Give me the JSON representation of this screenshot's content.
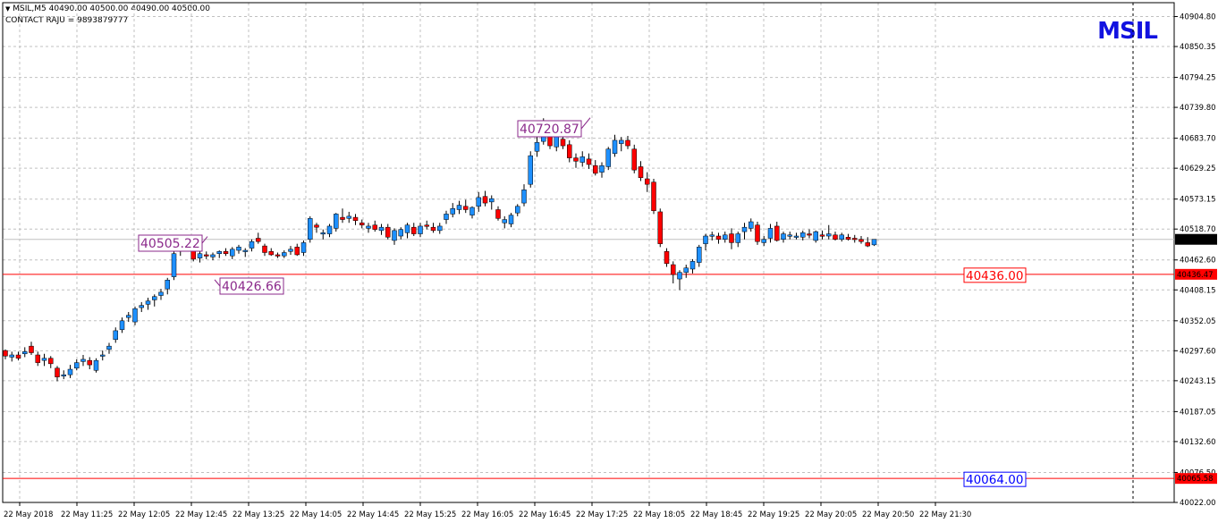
{
  "header": {
    "symbol_line": "MSIL,M5  40490.00 40500.00 40490.00 40500.00",
    "contact_line": "CONTACT RAJU = 9893879777",
    "big_title": "MSIL"
  },
  "colors": {
    "bull": "#1e90ff",
    "bear": "#ff0000",
    "grid": "#c0c0c0",
    "hline": "#ff0000",
    "price_tag": "#000000",
    "label_purple": "#8b2a8b",
    "label_blue": "#0000ff",
    "title": "#1212e0"
  },
  "chart_data": {
    "type": "candlestick",
    "symbol": "MSIL",
    "timeframe": "M5",
    "ylim": [
      40022,
      40930
    ],
    "y_ticks": [
      "40904.80",
      "40850.35",
      "40794.25",
      "40739.80",
      "40683.70",
      "40629.25",
      "40573.15",
      "40518.70",
      "40462.60",
      "40408.15",
      "40352.05",
      "40297.60",
      "40243.15",
      "40187.05",
      "40132.60",
      "40076.50",
      "40022.00"
    ],
    "x_ticks": [
      "22 May 2018",
      "22 May 11:25",
      "22 May 12:05",
      "22 May 12:45",
      "22 May 13:25",
      "22 May 14:05",
      "22 May 14:45",
      "22 May 15:25",
      "22 May 16:05",
      "22 May 16:45",
      "22 May 17:25",
      "22 May 18:05",
      "22 May 18:45",
      "22 May 19:25",
      "22 May 20:05",
      "22 May 20:50",
      "22 May 21:30"
    ],
    "current_price": "40500.00",
    "horizontal_lines": [
      {
        "price": 40436.47,
        "tag": "40436.47",
        "label": "40436.00",
        "label_color": "#ff0000"
      },
      {
        "price": 40065.58,
        "tag": "40065.58",
        "label": "40064.00",
        "label_color": "#0000ff"
      }
    ],
    "annotations": [
      {
        "text": "40720.87",
        "price": 40720.87,
        "bar": 82
      },
      {
        "text": "40505.22",
        "price": 40505.22,
        "bar": 28
      },
      {
        "text": "40426.66",
        "price": 40426.66,
        "bar": 31
      }
    ],
    "candles": [
      [
        40298,
        40300,
        40282,
        40288
      ],
      [
        40286,
        40296,
        40278,
        40290
      ],
      [
        40290,
        40296,
        40280,
        40284
      ],
      [
        40292,
        40304,
        40286,
        40296
      ],
      [
        40306,
        40314,
        40290,
        40294
      ],
      [
        40290,
        40296,
        40270,
        40276
      ],
      [
        40280,
        40292,
        40270,
        40284
      ],
      [
        40284,
        40288,
        40266,
        40274
      ],
      [
        40266,
        40270,
        40242,
        40250
      ],
      [
        40252,
        40262,
        40246,
        40254
      ],
      [
        40254,
        40272,
        40248,
        40264
      ],
      [
        40266,
        40282,
        40262,
        40276
      ],
      [
        40278,
        40290,
        40270,
        40282
      ],
      [
        40280,
        40286,
        40264,
        40272
      ],
      [
        40262,
        40284,
        40258,
        40280
      ],
      [
        40288,
        40298,
        40280,
        40290
      ],
      [
        40300,
        40312,
        40292,
        40306
      ],
      [
        40318,
        40340,
        40312,
        40334
      ],
      [
        40336,
        40358,
        40330,
        40352
      ],
      [
        40358,
        40368,
        40350,
        40362
      ],
      [
        40350,
        40378,
        40344,
        40374
      ],
      [
        40376,
        40386,
        40368,
        40380
      ],
      [
        40382,
        40394,
        40372,
        40388
      ],
      [
        40390,
        40400,
        40378,
        40396
      ],
      [
        40398,
        40410,
        40390,
        40404
      ],
      [
        40410,
        40430,
        40400,
        40426
      ],
      [
        40432,
        40478,
        40426,
        40474
      ],
      [
        40478,
        40506,
        40470,
        40500
      ],
      [
        40498,
        40508,
        40484,
        40492
      ],
      [
        40490,
        40492,
        40460,
        40464
      ],
      [
        40466,
        40482,
        40458,
        40474
      ],
      [
        40472,
        40478,
        40464,
        40470
      ],
      [
        40468,
        40476,
        40462,
        40472
      ],
      [
        40474,
        40480,
        40466,
        40478
      ],
      [
        40478,
        40484,
        40470,
        40474
      ],
      [
        40470,
        40486,
        40464,
        40482
      ],
      [
        40480,
        40490,
        40474,
        40486
      ],
      [
        40478,
        40484,
        40468,
        40480
      ],
      [
        40484,
        40500,
        40478,
        40496
      ],
      [
        40502,
        40512,
        40492,
        40496
      ],
      [
        40488,
        40492,
        40470,
        40476
      ],
      [
        40478,
        40484,
        40470,
        40472
      ],
      [
        40472,
        40476,
        40466,
        40470
      ],
      [
        40470,
        40480,
        40466,
        40476
      ],
      [
        40478,
        40488,
        40472,
        40482
      ],
      [
        40486,
        40492,
        40470,
        40472
      ],
      [
        40476,
        40498,
        40470,
        40494
      ],
      [
        40500,
        40542,
        40494,
        40538
      ],
      [
        40526,
        40530,
        40512,
        40522
      ],
      [
        40512,
        40518,
        40500,
        40512
      ],
      [
        40510,
        40528,
        40504,
        40524
      ],
      [
        40520,
        40548,
        40514,
        40546
      ],
      [
        40540,
        40556,
        40530,
        40536
      ],
      [
        40538,
        40550,
        40530,
        40542
      ],
      [
        40540,
        40546,
        40526,
        40534
      ],
      [
        40530,
        40536,
        40520,
        40526
      ],
      [
        40520,
        40530,
        40512,
        40524
      ],
      [
        40526,
        40534,
        40514,
        40518
      ],
      [
        40516,
        40528,
        40508,
        40522
      ],
      [
        40522,
        40528,
        40500,
        40504
      ],
      [
        40498,
        40520,
        40490,
        40516
      ],
      [
        40506,
        40522,
        40500,
        40518
      ],
      [
        40512,
        40530,
        40502,
        40526
      ],
      [
        40522,
        40530,
        40506,
        40510
      ],
      [
        40510,
        40530,
        40504,
        40524
      ],
      [
        40526,
        40534,
        40518,
        40524
      ],
      [
        40522,
        40530,
        40512,
        40516
      ],
      [
        40516,
        40530,
        40510,
        40524
      ],
      [
        40536,
        40552,
        40528,
        40546
      ],
      [
        40546,
        40566,
        40540,
        40556
      ],
      [
        40554,
        40570,
        40546,
        40562
      ],
      [
        40560,
        40572,
        40548,
        40554
      ],
      [
        40544,
        40560,
        40538,
        40558
      ],
      [
        40560,
        40586,
        40550,
        40576
      ],
      [
        40578,
        40588,
        40560,
        40566
      ],
      [
        40568,
        40580,
        40554,
        40574
      ],
      [
        40554,
        40560,
        40534,
        40538
      ],
      [
        40530,
        40542,
        40520,
        40536
      ],
      [
        40528,
        40548,
        40522,
        40544
      ],
      [
        40548,
        40564,
        40542,
        40560
      ],
      [
        40566,
        40600,
        40560,
        40590
      ],
      [
        40600,
        40660,
        40594,
        40652
      ],
      [
        40660,
        40686,
        40650,
        40676
      ],
      [
        40678,
        40720,
        40672,
        40698
      ],
      [
        40692,
        40704,
        40664,
        40670
      ],
      [
        40668,
        40694,
        40660,
        40690
      ],
      [
        40682,
        40696,
        40664,
        40670
      ],
      [
        40672,
        40680,
        40640,
        40648
      ],
      [
        40648,
        40656,
        40630,
        40642
      ],
      [
        40640,
        40660,
        40632,
        40650
      ],
      [
        40646,
        40656,
        40628,
        40636
      ],
      [
        40634,
        40644,
        40616,
        40620
      ],
      [
        40622,
        40640,
        40612,
        40634
      ],
      [
        40632,
        40668,
        40626,
        40664
      ],
      [
        40656,
        40690,
        40650,
        40680
      ],
      [
        40674,
        40686,
        40660,
        40680
      ],
      [
        40680,
        40688,
        40664,
        40670
      ],
      [
        40664,
        40672,
        40620,
        40626
      ],
      [
        40632,
        40642,
        40606,
        40612
      ],
      [
        40610,
        40622,
        40586,
        40600
      ],
      [
        40604,
        40610,
        40546,
        40552
      ],
      [
        40550,
        40556,
        40486,
        40492
      ],
      [
        40478,
        40484,
        40450,
        40456
      ],
      [
        40454,
        40460,
        40420,
        40436
      ],
      [
        40428,
        40444,
        40408,
        40440
      ],
      [
        40440,
        40454,
        40430,
        40448
      ],
      [
        40446,
        40464,
        40438,
        40460
      ],
      [
        40458,
        40490,
        40450,
        40486
      ],
      [
        40492,
        40510,
        40480,
        40506
      ],
      [
        40506,
        40514,
        40498,
        40508
      ],
      [
        40506,
        40512,
        40492,
        40500
      ],
      [
        40500,
        40514,
        40494,
        40508
      ],
      [
        40510,
        40520,
        40482,
        40494
      ],
      [
        40494,
        40514,
        40486,
        40510
      ],
      [
        40514,
        40530,
        40500,
        40522
      ],
      [
        40520,
        40538,
        40514,
        40532
      ],
      [
        40526,
        40532,
        40490,
        40496
      ],
      [
        40494,
        40506,
        40488,
        40500
      ],
      [
        40502,
        40528,
        40494,
        40520
      ],
      [
        40524,
        40532,
        40496,
        40498
      ],
      [
        40500,
        40514,
        40494,
        40510
      ],
      [
        40508,
        40514,
        40500,
        40508
      ],
      [
        40504,
        40512,
        40500,
        40506
      ],
      [
        40504,
        40516,
        40498,
        40512
      ],
      [
        40510,
        40518,
        40502,
        40508
      ],
      [
        40498,
        40516,
        40494,
        40514
      ],
      [
        40508,
        40516,
        40500,
        40506
      ],
      [
        40506,
        40526,
        40500,
        40510
      ],
      [
        40508,
        40514,
        40498,
        40500
      ],
      [
        40500,
        40512,
        40496,
        40508
      ],
      [
        40504,
        40510,
        40498,
        40500
      ],
      [
        40502,
        40508,
        40494,
        40500
      ],
      [
        40500,
        40506,
        40492,
        40496
      ],
      [
        40494,
        40504,
        40486,
        40488
      ],
      [
        40490,
        40500,
        40488,
        40500
      ]
    ]
  }
}
